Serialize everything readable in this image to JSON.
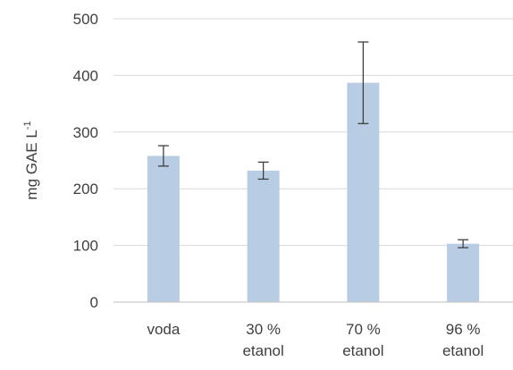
{
  "chart_data": {
    "type": "bar",
    "categories": [
      [
        "voda"
      ],
      [
        "30 %",
        "etanol"
      ],
      [
        "70 %",
        "etanol"
      ],
      [
        "96 %",
        "etanol"
      ]
    ],
    "values": [
      258,
      232,
      387,
      103
    ],
    "error": [
      18,
      15,
      72,
      7
    ],
    "ylabel": "mg GAE L",
    "ylabel_superscript": "-1",
    "ylim": [
      0,
      500
    ],
    "yticks": [
      0,
      100,
      200,
      300,
      400,
      500
    ],
    "grid": true,
    "legend": "none",
    "colors": {
      "bar": "#b8cce4",
      "grid": "#d9d9d9",
      "axis": "#bfbfbf",
      "error_bar": "#404040",
      "text": "#404040"
    }
  }
}
